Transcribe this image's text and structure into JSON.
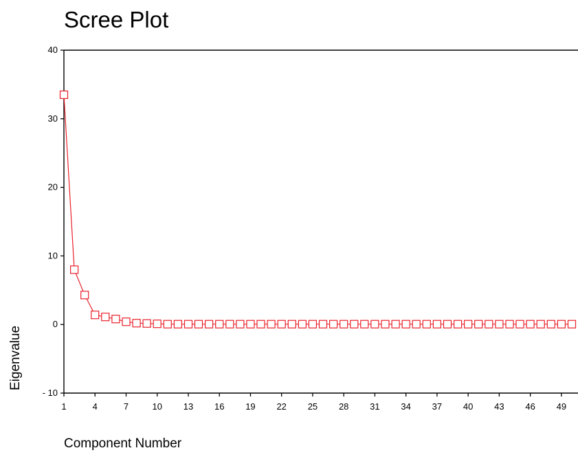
{
  "chart_data": {
    "type": "line",
    "title": "Scree Plot",
    "xlabel": "Component Number",
    "ylabel": "Eigenvalue",
    "ylim": [
      -10,
      40
    ],
    "yticks": [
      40,
      30,
      20,
      10,
      0,
      -10
    ],
    "ytick_labels": [
      "40",
      "30",
      "20",
      "10",
      "0",
      "- 10"
    ],
    "xticks": [
      1,
      4,
      7,
      10,
      13,
      16,
      19,
      22,
      25,
      28,
      31,
      34,
      37,
      40,
      43,
      46,
      49
    ],
    "xtick_labels": [
      "1",
      "4",
      "7",
      "10",
      "13",
      "16",
      "19",
      "22",
      "25",
      "28",
      "31",
      "34",
      "37",
      "40",
      "43",
      "46",
      "49"
    ],
    "xlim": [
      1,
      50.6
    ],
    "grid": false,
    "legend": "none",
    "series": [
      {
        "color": "#e8202a",
        "marker": "square",
        "x": [
          1,
          2,
          3,
          4,
          5,
          6,
          7,
          8,
          9,
          10,
          11,
          12,
          13,
          14,
          15,
          16,
          17,
          18,
          19,
          20,
          21,
          22,
          23,
          24,
          25,
          26,
          27,
          28,
          29,
          30,
          31,
          32,
          33,
          34,
          35,
          36,
          37,
          38,
          39,
          40,
          41,
          42,
          43,
          44,
          45,
          46,
          47,
          48,
          49,
          50
        ],
        "values": [
          33.5,
          8.0,
          4.3,
          1.4,
          1.1,
          0.8,
          0.4,
          0.2,
          0.15,
          0.1,
          0.05,
          0.05,
          0.05,
          0.05,
          0.05,
          0.05,
          0.05,
          0.05,
          0.05,
          0.05,
          0.05,
          0.05,
          0.05,
          0.05,
          0.05,
          0.05,
          0.05,
          0.05,
          0.05,
          0.05,
          0.05,
          0.05,
          0.05,
          0.05,
          0.05,
          0.05,
          0.05,
          0.05,
          0.05,
          0.05,
          0.05,
          0.05,
          0.05,
          0.05,
          0.05,
          0.05,
          0.05,
          0.05,
          0.05,
          0.05
        ]
      }
    ]
  }
}
